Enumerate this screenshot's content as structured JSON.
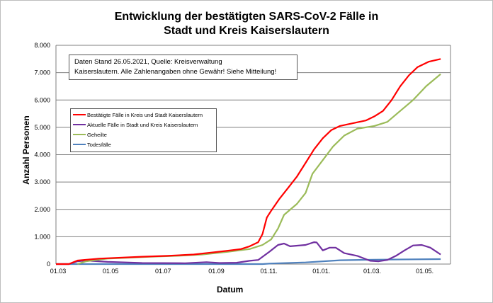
{
  "chart_data": {
    "type": "line",
    "title_line1": "Entwicklung der bestätigten SARS-CoV-2 Fälle in",
    "title_line2": "Stadt und Kreis Kaiserslautern",
    "xlabel": "Datum",
    "ylabel": "Anzahl Personen",
    "x_unit": "days since 01.03.2020",
    "xlim": [
      0,
      460
    ],
    "ylim": [
      0,
      8000
    ],
    "yticks": [
      0,
      1000,
      2000,
      3000,
      4000,
      5000,
      6000,
      7000,
      8000
    ],
    "ytick_labels": [
      "0",
      "1.000",
      "2.000",
      "3.000",
      "4.000",
      "5.000",
      "6.000",
      "7.000",
      "8.000"
    ],
    "xticks": [
      {
        "day": 0,
        "label": "01.03"
      },
      {
        "day": 61,
        "label": "01.05"
      },
      {
        "day": 122,
        "label": "01.07"
      },
      {
        "day": 184,
        "label": "01.09"
      },
      {
        "day": 245,
        "label": "01.11."
      },
      {
        "day": 306,
        "label": "01.01."
      },
      {
        "day": 365,
        "label": "01.03."
      },
      {
        "day": 426,
        "label": "01.05."
      }
    ],
    "grid": "horizontal",
    "annotation": {
      "line1": "Daten Stand 26.05.2021, Quelle: Kreisverwaltung",
      "line2": "Kaiserslautern. Alle Zahlenangaben ohne Gewähr! Siehe Mitteilung!"
    },
    "legend_placement": "upper-left",
    "series": [
      {
        "name": "Bestätigte Fälle in Kreis und Stadt Kaiserslautern",
        "color": "#ff0000",
        "x": [
          0,
          15,
          25,
          50,
          100,
          130,
          160,
          180,
          200,
          215,
          225,
          235,
          240,
          245,
          250,
          260,
          270,
          280,
          290,
          300,
          310,
          320,
          330,
          345,
          360,
          370,
          380,
          390,
          400,
          410,
          420,
          433,
          447
        ],
        "y": [
          0,
          0,
          130,
          200,
          270,
          300,
          350,
          420,
          490,
          550,
          650,
          800,
          1100,
          1700,
          1950,
          2400,
          2800,
          3200,
          3700,
          4200,
          4600,
          4900,
          5050,
          5150,
          5250,
          5400,
          5600,
          6000,
          6500,
          6900,
          7200,
          7400,
          7500
        ]
      },
      {
        "name": "Aktuelle Fälle in Stadt und Kreis Kaiserslautern",
        "color": "#7030a0",
        "x": [
          0,
          15,
          25,
          35,
          60,
          100,
          150,
          175,
          190,
          210,
          225,
          235,
          248,
          258,
          265,
          272,
          290,
          300,
          303,
          310,
          318,
          325,
          335,
          350,
          365,
          375,
          385,
          395,
          405,
          415,
          425,
          435,
          447
        ],
        "y": [
          0,
          0,
          100,
          130,
          80,
          40,
          30,
          70,
          40,
          50,
          120,
          150,
          450,
          700,
          750,
          650,
          700,
          800,
          790,
          500,
          600,
          600,
          400,
          300,
          120,
          100,
          150,
          300,
          500,
          680,
          700,
          600,
          350
        ]
      },
      {
        "name": "Geheilte",
        "color": "#9bbb59",
        "x": [
          25,
          35,
          60,
          110,
          140,
          170,
          200,
          225,
          240,
          250,
          258,
          265,
          280,
          290,
          298,
          310,
          322,
          335,
          350,
          370,
          385,
          400,
          415,
          430,
          447
        ],
        "y": [
          0,
          100,
          200,
          270,
          300,
          350,
          450,
          550,
          700,
          900,
          1300,
          1800,
          2200,
          2600,
          3300,
          3800,
          4300,
          4700,
          4950,
          5050,
          5200,
          5600,
          6000,
          6500,
          6950
        ]
      },
      {
        "name": "Todesfälle",
        "color": "#4f81bd",
        "x": [
          0,
          240,
          250,
          290,
          330,
          370,
          447
        ],
        "y": [
          0,
          0,
          20,
          60,
          140,
          160,
          180
        ]
      }
    ]
  }
}
